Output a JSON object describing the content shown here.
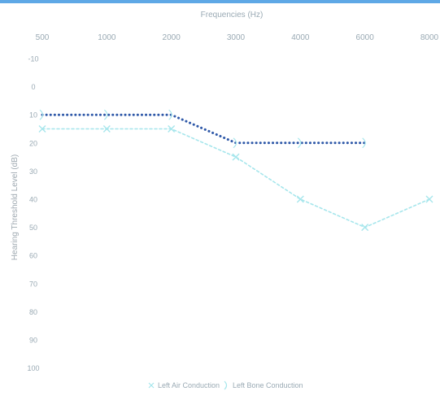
{
  "chart_data": {
    "type": "line",
    "title": "Frequencies (Hz)",
    "ylabel": "Hearing Threshold Level (dB)",
    "categories": [
      "500",
      "1000",
      "2000",
      "3000",
      "4000",
      "6000",
      "8000"
    ],
    "yticks": [
      "-10",
      "0",
      "10",
      "20",
      "30",
      "40",
      "50",
      "60",
      "70",
      "80",
      "90",
      "100"
    ],
    "ylim": [
      -10,
      100
    ],
    "y_inverted": true,
    "grid": false,
    "legend_position": "bottom",
    "series": [
      {
        "name": "Left Air Conduction",
        "marker": "x",
        "color": "#a6e6ec",
        "values": [
          15,
          15,
          15,
          25,
          40,
          50,
          40
        ]
      },
      {
        "name": "Left Bone Conduction",
        "marker": ">",
        "color": "#2e58a8",
        "marker_color": "#a6e6ec",
        "values": [
          10,
          10,
          10,
          20,
          20,
          20,
          null
        ]
      }
    ]
  }
}
